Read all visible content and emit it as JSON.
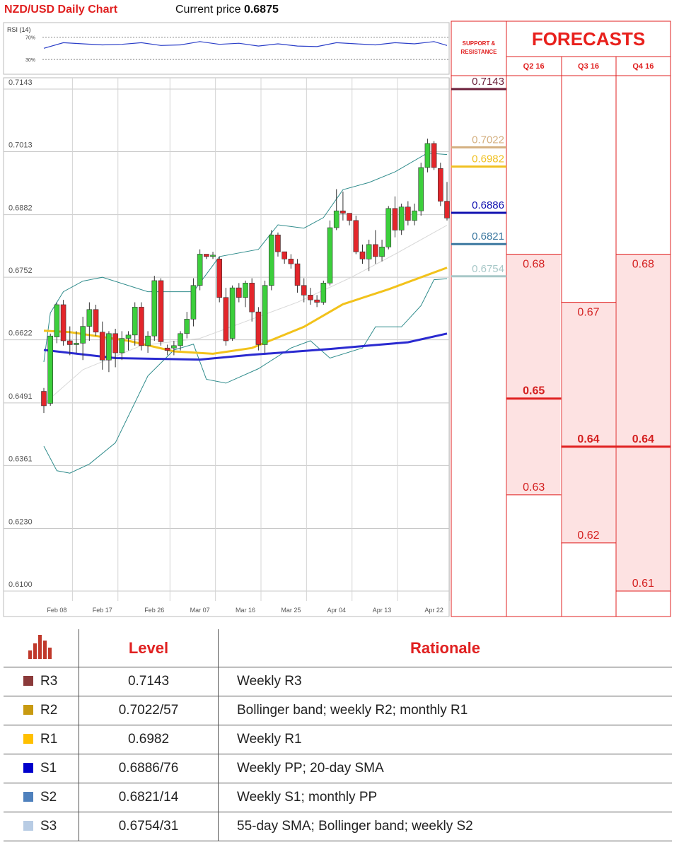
{
  "header": {
    "title": "NZD/USD Daily Chart",
    "current_price_label": "Current price",
    "current_price": 0.6875
  },
  "rsi": {
    "type": "line",
    "label": "RSI (14)",
    "color": "#2b3fc8",
    "ylim": [
      10,
      92
    ],
    "yticks": [
      {
        "value": 70,
        "label": "70%"
      },
      {
        "value": 30,
        "label": "30%"
      }
    ],
    "x": [
      0,
      3,
      6,
      9,
      12,
      15,
      18,
      21,
      24,
      27,
      30,
      33,
      36,
      39,
      42,
      45,
      48,
      51,
      54,
      57,
      60,
      62
    ],
    "values": [
      50,
      60,
      58,
      56,
      57,
      60,
      55,
      56,
      62,
      57,
      59,
      54,
      58,
      54,
      53,
      60,
      58,
      56,
      60,
      58,
      62,
      55
    ]
  },
  "chart_data": {
    "type": "candlestick",
    "categories": [
      null,
      null,
      "Feb 08",
      null,
      null,
      null,
      null,
      null,
      null,
      "Feb 17",
      null,
      null,
      null,
      null,
      null,
      null,
      null,
      "Feb 26",
      null,
      null,
      null,
      null,
      null,
      null,
      "Mar 07",
      null,
      null,
      null,
      null,
      null,
      null,
      "Mar 16",
      null,
      null,
      null,
      null,
      null,
      null,
      "Mar 25",
      null,
      null,
      null,
      null,
      null,
      null,
      "Apr 04",
      null,
      null,
      null,
      null,
      null,
      null,
      "Apr 13",
      null,
      null,
      null,
      null,
      null,
      null,
      null,
      "Apr 22",
      null,
      null
    ],
    "open": [
      0.6515,
      0.649,
      0.6628,
      0.6695,
      0.662,
      0.6612,
      0.6615,
      0.665,
      0.6685,
      0.6638,
      0.658,
      0.6635,
      0.6595,
      0.6625,
      0.6632,
      0.669,
      0.661,
      0.663,
      0.6745,
      0.6605,
      0.6605,
      0.661,
      0.6635,
      0.6665,
      0.6735,
      0.68,
      0.6795,
      0.679,
      0.671,
      0.6625,
      0.673,
      0.671,
      0.674,
      0.668,
      0.6612,
      0.6735,
      0.684,
      0.6805,
      0.679,
      0.678,
      0.6735,
      0.6715,
      0.6705,
      0.67,
      0.674,
      0.6855,
      0.689,
      0.6885,
      0.687,
      0.6805,
      0.679,
      0.682,
      0.6795,
      0.6815,
      0.6895,
      0.685,
      0.6898,
      0.687,
      0.689,
      0.698,
      0.703,
      0.6978,
      0.691
    ],
    "high": [
      0.6522,
      0.6635,
      0.67,
      0.6705,
      0.665,
      0.664,
      0.667,
      0.67,
      0.6695,
      0.666,
      0.664,
      0.6645,
      0.664,
      0.664,
      0.67,
      0.67,
      0.664,
      0.6755,
      0.675,
      0.6612,
      0.662,
      0.664,
      0.668,
      0.675,
      0.681,
      0.68,
      0.6805,
      0.6795,
      0.673,
      0.6735,
      0.674,
      0.6745,
      0.675,
      0.669,
      0.6745,
      0.685,
      0.6845,
      0.6805,
      0.68,
      0.679,
      0.675,
      0.673,
      0.6715,
      0.6745,
      0.687,
      0.6935,
      0.693,
      0.6885,
      0.688,
      0.682,
      0.683,
      0.685,
      0.683,
      0.69,
      0.692,
      0.6905,
      0.691,
      0.6905,
      0.699,
      0.704,
      0.7035,
      0.699,
      0.695
    ],
    "low": [
      0.647,
      0.6485,
      0.6615,
      0.661,
      0.659,
      0.6595,
      0.658,
      0.662,
      0.663,
      0.656,
      0.6555,
      0.6565,
      0.658,
      0.66,
      0.661,
      0.66,
      0.6595,
      0.662,
      0.661,
      0.659,
      0.659,
      0.66,
      0.6625,
      0.665,
      0.6725,
      0.679,
      0.679,
      0.67,
      0.661,
      0.662,
      0.67,
      0.669,
      0.666,
      0.66,
      0.6595,
      0.6725,
      0.6795,
      0.678,
      0.677,
      0.672,
      0.67,
      0.6695,
      0.669,
      0.6695,
      0.6735,
      0.685,
      0.687,
      0.686,
      0.68,
      0.678,
      0.6765,
      0.678,
      0.6785,
      0.681,
      0.6835,
      0.684,
      0.686,
      0.686,
      0.688,
      0.697,
      0.6975,
      0.69,
      0.687
    ],
    "close": [
      0.6485,
      0.663,
      0.6695,
      0.662,
      0.6612,
      0.6615,
      0.665,
      0.6685,
      0.6638,
      0.658,
      0.6635,
      0.6595,
      0.6625,
      0.6632,
      0.669,
      0.661,
      0.663,
      0.6745,
      0.6618,
      0.66,
      0.661,
      0.6635,
      0.6665,
      0.6735,
      0.68,
      0.6795,
      0.6798,
      0.671,
      0.662,
      0.673,
      0.671,
      0.674,
      0.668,
      0.6612,
      0.6735,
      0.684,
      0.6805,
      0.679,
      0.678,
      0.6735,
      0.6715,
      0.6705,
      0.67,
      0.674,
      0.6855,
      0.689,
      0.6885,
      0.687,
      0.6805,
      0.679,
      0.682,
      0.6795,
      0.6815,
      0.6895,
      0.685,
      0.6898,
      0.687,
      0.689,
      0.698,
      0.703,
      0.698,
      0.691,
      0.6875
    ],
    "up_color": "#3ccf3c",
    "down_color": "#e3262b",
    "ylim": [
      0.61,
      0.7143
    ],
    "yticks": [
      0.7143,
      0.7013,
      0.6882,
      0.6752,
      0.6622,
      0.6491,
      0.6361,
      {
        "value": 0.623,
        "label": "0.6230"
      },
      {
        "value": 0.61,
        "label": "0.6100"
      }
    ],
    "lines": [
      {
        "color": "#d8d8d8",
        "width": 1,
        "x": [
          0,
          6,
          15,
          24,
          31,
          39,
          47,
          54,
          62
        ],
        "values": [
          0.6489,
          0.656,
          0.661,
          0.6625,
          0.666,
          0.67,
          0.675,
          0.68,
          0.686
        ]
      },
      {
        "color": "#2e8b8b",
        "width": 1,
        "x": [
          0,
          1,
          3,
          6,
          9,
          16,
          23,
          27,
          33,
          36,
          40,
          43,
          46,
          50,
          54,
          59,
          62
        ],
        "values": [
          0.6576,
          0.6678,
          0.6722,
          0.6744,
          0.6752,
          0.6722,
          0.6722,
          0.6795,
          0.681,
          0.6861,
          0.6854,
          0.6876,
          0.6934,
          0.6949,
          0.6971,
          0.701,
          0.7007
        ]
      },
      {
        "color": "#2e8b8b",
        "width": 1,
        "x": [
          0,
          2,
          4,
          7,
          11,
          16,
          20,
          23,
          25,
          28,
          33,
          38,
          41,
          44,
          49,
          51,
          55,
          58,
          60,
          62
        ],
        "values": [
          0.6401,
          0.635,
          0.6345,
          0.6364,
          0.6408,
          0.6547,
          0.6601,
          0.6613,
          0.654,
          0.6532,
          0.6562,
          0.6605,
          0.662,
          0.6584,
          0.6605,
          0.6649,
          0.6649,
          0.6693,
          0.6747,
          0.6749
        ]
      },
      {
        "color": "#f2c21b",
        "width": 3,
        "x": [
          0,
          4,
          13,
          20,
          26,
          32,
          40,
          46,
          53,
          62
        ],
        "values": [
          0.6641,
          0.6638,
          0.662,
          0.6598,
          0.6593,
          0.6605,
          0.6649,
          0.6696,
          0.6727,
          0.6772
        ]
      },
      {
        "color": "#2a2ad0",
        "width": 3,
        "x": [
          0,
          11,
          24,
          32,
          44,
          50,
          56,
          62
        ],
        "values": [
          0.6601,
          0.6584,
          0.6581,
          0.6591,
          0.6603,
          0.661,
          0.6617,
          0.6635
        ]
      }
    ]
  },
  "support_resistance": {
    "title": "SUPPORT & RESISTANCE",
    "levels": [
      {
        "value": 0.7143,
        "color": "#6b1f3a"
      },
      {
        "value": 0.7022,
        "color": "#d4b080"
      },
      {
        "value": 0.6982,
        "color": "#f0c020"
      },
      {
        "value": 0.6886,
        "color": "#1010b0"
      },
      {
        "value": 0.6821,
        "color": "#3c78a0"
      },
      {
        "value": 0.6754,
        "color": "#a8c8c8"
      }
    ]
  },
  "forecasts": {
    "title": "FORECASTS",
    "columns": [
      {
        "label": "Q2 16",
        "high": 0.68,
        "mid": 0.65,
        "low": 0.63
      },
      {
        "label": "Q3 16",
        "high": 0.67,
        "mid": 0.64,
        "low": 0.62
      },
      {
        "label": "Q4 16",
        "high": 0.68,
        "mid": 0.64,
        "low": 0.61
      }
    ]
  },
  "table": {
    "headers": [
      "Level",
      "Rationale"
    ],
    "rows": [
      {
        "name": "R3",
        "color": "#8b3a3a",
        "level": 0.7143,
        "rationale": "Weekly R3"
      },
      {
        "name": "R2",
        "color": "#c89a10",
        "level": "0.7022/57",
        "rationale": "Bollinger band; weekly R2; monthly R1"
      },
      {
        "name": "R1",
        "color": "#ffc000",
        "level": 0.6982,
        "rationale": "Weekly R1"
      },
      {
        "name": "S1",
        "color": "#0000cc",
        "level": "0.6886/76",
        "rationale": "Weekly PP; 20-day SMA"
      },
      {
        "name": "S2",
        "color": "#4f81bd",
        "level": "0.6821/14",
        "rationale": "Weekly S1; monthly PP"
      },
      {
        "name": "S3",
        "color": "#b8cce4",
        "level": "0.6754/31",
        "rationale": "55-day SMA; Bollinger band; weekly S2"
      }
    ]
  }
}
